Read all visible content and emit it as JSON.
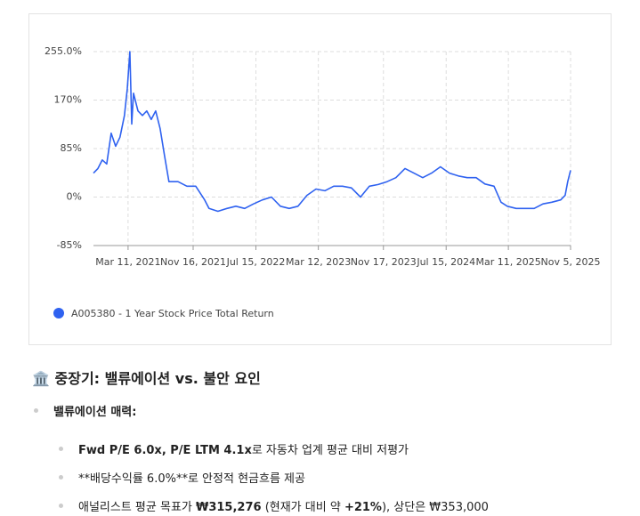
{
  "chart_data": {
    "type": "line",
    "x": [
      "2020-10-29",
      "2020-11-15",
      "2020-12-02",
      "2020-12-19",
      "2021-01-05",
      "2021-01-22",
      "2021-02-08",
      "2021-02-25",
      "2021-03-08",
      "2021-03-18",
      "2021-03-25",
      "2021-04-01",
      "2021-04-18",
      "2021-05-05",
      "2021-05-22",
      "2021-06-08",
      "2021-06-25",
      "2021-07-12",
      "2021-07-29",
      "2021-08-15",
      "2021-09-19",
      "2021-10-23",
      "2021-11-26",
      "2021-12-30",
      "2022-01-16",
      "2022-02-19",
      "2022-03-26",
      "2022-04-29",
      "2022-06-02",
      "2022-07-06",
      "2022-08-09",
      "2022-09-13",
      "2022-10-17",
      "2022-11-20",
      "2022-12-24",
      "2023-01-27",
      "2023-03-03",
      "2023-04-06",
      "2023-05-10",
      "2023-06-13",
      "2023-07-17",
      "2023-08-21",
      "2023-09-24",
      "2023-10-28",
      "2023-12-01",
      "2024-01-04",
      "2024-02-08",
      "2024-03-13",
      "2024-04-16",
      "2024-05-20",
      "2024-06-23",
      "2024-07-28",
      "2024-08-31",
      "2024-10-04",
      "2024-11-07",
      "2024-12-11",
      "2025-01-15",
      "2025-02-11",
      "2025-03-07",
      "2025-04-10",
      "2025-05-14",
      "2025-06-18",
      "2025-07-22",
      "2025-08-25",
      "2025-09-28",
      "2025-10-15",
      "2025-10-25",
      "2025-11-05"
    ],
    "series": [
      {
        "name": "A005380 - 1 Year Stock Price Total Return",
        "color": "#2f62f0",
        "values": [
          42,
          50,
          65,
          58,
          112,
          89,
          105,
          143,
          190,
          255,
          128,
          182,
          151,
          143,
          151,
          136,
          151,
          120,
          73,
          27,
          27,
          19,
          19,
          -5,
          -20,
          -25,
          -20,
          -16,
          -20,
          -12,
          -5,
          0,
          -16,
          -20,
          -16,
          3,
          14,
          11,
          19,
          19,
          16,
          0,
          19,
          22,
          27,
          34,
          50,
          42,
          34,
          42,
          53,
          42,
          37,
          34,
          34,
          23,
          19,
          -9,
          -16,
          -20,
          -20,
          -20,
          -12,
          -9,
          -5,
          3,
          27,
          47
        ]
      }
    ],
    "xlim": [
      "2020-10-29",
      "2025-11-05"
    ],
    "xticks": [
      {
        "value": "2021-03-11",
        "label": "Mar 11, 2021"
      },
      {
        "value": "2021-11-16",
        "label": "Nov 16, 2021"
      },
      {
        "value": "2022-07-15",
        "label": "Jul 15, 2022"
      },
      {
        "value": "2023-03-12",
        "label": "Mar 12, 2023"
      },
      {
        "value": "2023-11-17",
        "label": "Nov 17, 2023"
      },
      {
        "value": "2024-07-15",
        "label": "Jul 15, 2024"
      },
      {
        "value": "2025-03-11",
        "label": "Mar 11, 2025"
      },
      {
        "value": "2025-11-05",
        "label": "Nov 5, 2025"
      }
    ],
    "ylim": [
      -85,
      255
    ],
    "yticks": [
      {
        "value": -85,
        "label": "-85%"
      },
      {
        "value": 0,
        "label": "0%"
      },
      {
        "value": 85,
        "label": "85%"
      },
      {
        "value": 170,
        "label": "170%"
      },
      {
        "value": 255,
        "label": "255.0%"
      }
    ],
    "grid": true
  },
  "section": {
    "icon": "🏛️",
    "title": "중장기: 밸류에이션 vs. 불안 요인",
    "bullet": "밸류에이션 매력:",
    "items": [
      [
        {
          "text": "Fwd P/E 6.0x, P/E LTM 4.1x",
          "bold": true
        },
        {
          "text": "로 자동차 업계 평균 대비 저평가",
          "bold": false
        }
      ],
      [
        {
          "text": "**배당수익률 6.0%**로 안정적 현금흐름 제공",
          "bold": false
        }
      ],
      [
        {
          "text": "애널리스트 평균 목표가 ",
          "bold": false
        },
        {
          "text": "₩315,276",
          "bold": true
        },
        {
          "text": " (현재가 대비 약 ",
          "bold": false
        },
        {
          "text": "+21%",
          "bold": true
        },
        {
          "text": "), 상단은 ₩353,000",
          "bold": false
        }
      ]
    ]
  }
}
